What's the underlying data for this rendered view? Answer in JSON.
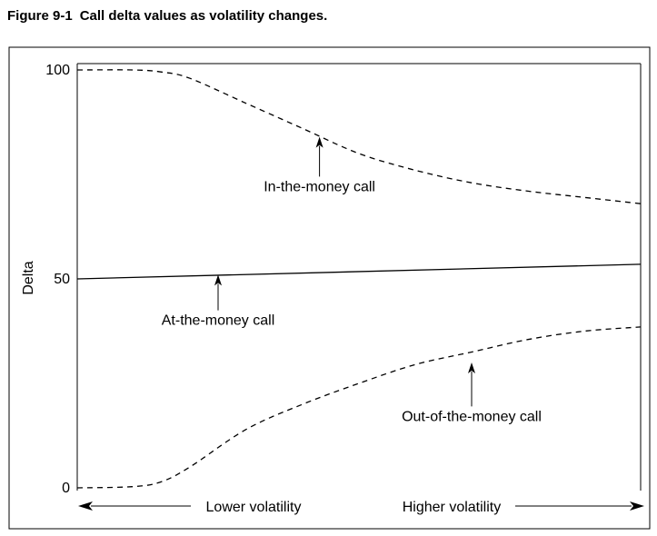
{
  "caption": {
    "number": "Figure 9-1",
    "text": "Call delta values as volatility changes."
  },
  "chart_data": {
    "type": "line",
    "ylabel": "Delta",
    "ylim": [
      0,
      100
    ],
    "yticks": [
      {
        "value": 100,
        "label": "100"
      },
      {
        "value": 50,
        "label": "50"
      },
      {
        "value": 0,
        "label": "0"
      }
    ],
    "xlim": [
      0,
      100
    ],
    "grid": false,
    "x_axis_notes": {
      "left": "Lower volatility",
      "right": "Higher volatility"
    },
    "series": [
      {
        "key": "itm",
        "style": "dashed",
        "x": [
          0,
          10,
          15,
          20,
          30,
          40,
          50,
          60,
          70,
          80,
          90,
          100
        ],
        "y": [
          100,
          100,
          99.5,
          98,
          92,
          86,
          80,
          76,
          73,
          71,
          69.5,
          68
        ]
      },
      {
        "key": "atm",
        "style": "solid",
        "x": [
          0,
          100
        ],
        "y": [
          50,
          53.5
        ]
      },
      {
        "key": "otm",
        "style": "dashed",
        "x": [
          0,
          10,
          15,
          20,
          30,
          40,
          50,
          60,
          70,
          80,
          90,
          100
        ],
        "y": [
          0,
          0.3,
          1.5,
          5,
          14,
          20,
          25,
          29.5,
          32.5,
          35.5,
          37.5,
          38.5
        ]
      }
    ],
    "annotations": [
      {
        "text": "In-the-money call",
        "series": "itm",
        "arrow_x": 43,
        "arrow_y": 84,
        "text_y": 71
      },
      {
        "text": "At-the-money call",
        "series": "atm",
        "arrow_x": 25,
        "arrow_y": 51,
        "text_y": 39
      },
      {
        "text": "Out-of-the-money call",
        "series": "otm",
        "arrow_x": 70,
        "arrow_y": 30,
        "text_y": 16
      }
    ]
  }
}
